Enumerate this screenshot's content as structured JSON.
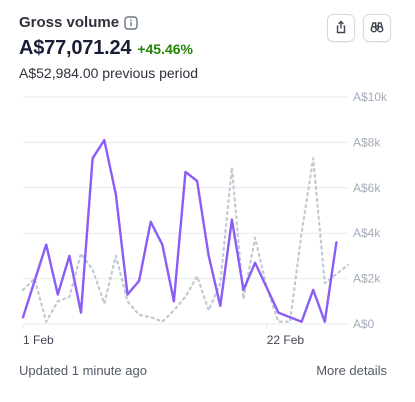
{
  "header": {
    "title": "Gross volume",
    "info_icon": "info-icon",
    "value": "A$77,071.24",
    "delta": "+45.46%",
    "previous": "A$52,984.00 previous period",
    "export_icon": "share-export-icon",
    "compare_icon": "binoculars-icon"
  },
  "footer": {
    "updated": "Updated 1 minute ago",
    "more": "More details"
  },
  "colors": {
    "current": "#8b5cf6",
    "previous": "#c1c9d2",
    "grid": "#e6e9ef",
    "delta": "#228403"
  },
  "chart_data": {
    "type": "line",
    "x_ticks": [
      "1 Feb",
      "22 Feb"
    ],
    "y_ticks": [
      "A$0",
      "A$2k",
      "A$4k",
      "A$6k",
      "A$8k",
      "A$10k"
    ],
    "ylim": [
      0,
      10000
    ],
    "x_dates_feb": [
      1,
      2,
      3,
      4,
      5,
      6,
      7,
      8,
      9,
      10,
      11,
      12,
      13,
      14,
      15,
      16,
      17,
      18,
      19,
      20,
      21,
      22,
      23,
      24,
      25,
      26,
      27,
      28,
      29
    ],
    "series": [
      {
        "values": [
          300,
          1900,
          3500,
          1300,
          3000,
          500,
          7300,
          8100,
          5700,
          1300,
          1900,
          4500,
          3500,
          1000,
          6700,
          6300,
          3000,
          800,
          4600,
          1500,
          2700,
          1600,
          500,
          300,
          100,
          1500,
          100,
          3600
        ]
      },
      {
        "values": [
          1500,
          2000,
          100,
          1000,
          1200,
          3100,
          2400,
          900,
          3000,
          1000,
          400,
          300,
          100,
          600,
          1200,
          2100,
          600,
          1800,
          6900,
          1100,
          3800,
          1600,
          100,
          100,
          4000,
          7300,
          1800,
          2200,
          2600
        ]
      }
    ]
  }
}
